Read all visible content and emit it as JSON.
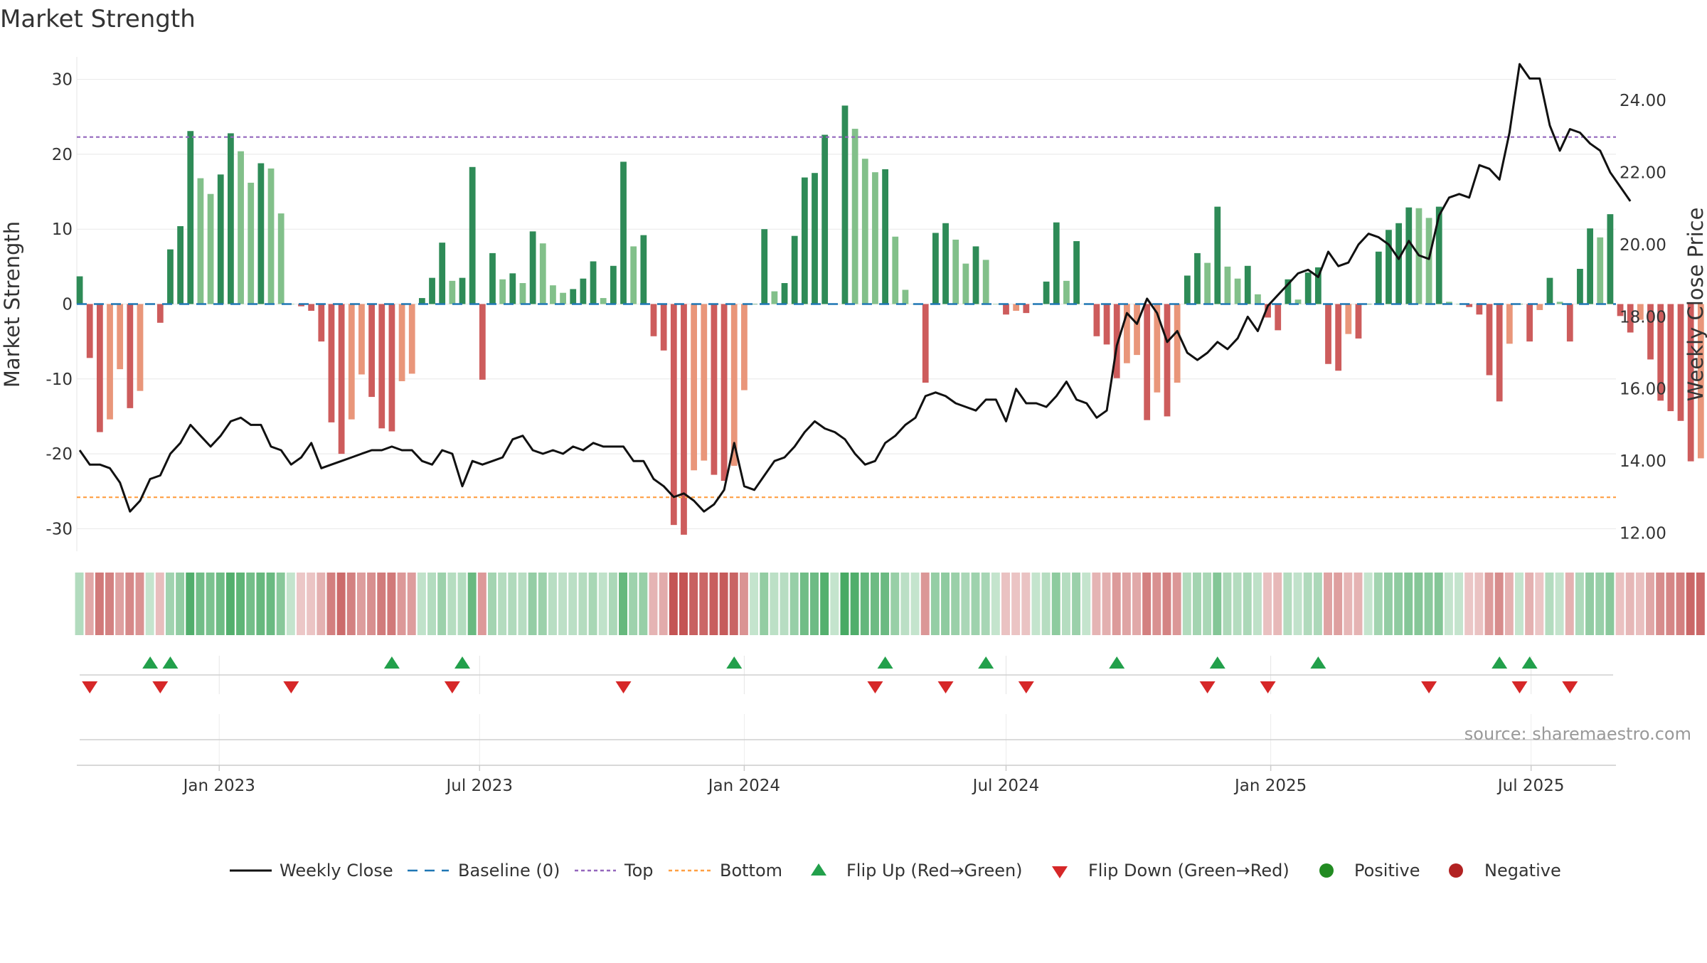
{
  "chart_data": {
    "type": "bar",
    "title": "Market Strength",
    "ylabel_left": "Market Strength",
    "ylabel_right": "Weekly Close Price",
    "ylim_left": [
      -33,
      33
    ],
    "ylim_right": [
      11.5,
      25.2
    ],
    "yticks_left": [
      30,
      20,
      10,
      0,
      -10,
      -20,
      -30
    ],
    "yticks_right": [
      "24.00",
      "22.00",
      "20.00",
      "18.00",
      "16.00",
      "14.00",
      "12.00"
    ],
    "top_line": 22.3,
    "bottom_line": -25.8,
    "baseline": 0,
    "x_range": [
      "2022-09-24",
      "2025-08-29"
    ],
    "x_ticks": [
      {
        "date": "2023-01-01",
        "label": "Jan 2023"
      },
      {
        "date": "2023-07-01",
        "label": "Jul 2023"
      },
      {
        "date": "2024-01-01",
        "label": "Jan 2024"
      },
      {
        "date": "2024-07-01",
        "label": "Jul 2024"
      },
      {
        "date": "2025-01-01",
        "label": "Jan 2025"
      },
      {
        "date": "2025-07-01",
        "label": "Jul 2025"
      }
    ],
    "start_date": "2022-09-26",
    "week_step_days": 7,
    "strength": [
      3.7,
      -7.2,
      -17.1,
      -15.4,
      -8.7,
      -13.9,
      -11.6,
      0,
      -2.5,
      7.3,
      10.4,
      23.1,
      16.8,
      14.7,
      17.3,
      22.8,
      20.4,
      16.2,
      18.8,
      18.1,
      12.1,
      0,
      -0.3,
      -0.9,
      -5,
      -15.8,
      -20,
      -15.4,
      -9.4,
      -12.4,
      -16.6,
      -17,
      -10.3,
      -9.3,
      0.8,
      3.5,
      8.2,
      3.1,
      3.5,
      18.3,
      -10.1,
      6.8,
      3.3,
      4.1,
      2.8,
      9.7,
      8.1,
      2.5,
      1.5,
      2,
      3.4,
      5.7,
      0.8,
      5.1,
      19,
      7.7,
      9.2,
      -4.3,
      -6.2,
      -29.5,
      -30.8,
      -22.2,
      -20.9,
      -22.8,
      -23.6,
      -21.6,
      -11.5,
      0,
      10,
      1.7,
      2.8,
      9.1,
      16.9,
      17.5,
      22.6,
      0,
      26.5,
      23.4,
      19.4,
      17.6,
      18,
      9,
      1.9,
      0,
      -10.5,
      9.5,
      10.8,
      8.6,
      5.4,
      7.7,
      5.9,
      0,
      -1.4,
      -0.9,
      -1.2,
      0,
      3,
      10.9,
      3.1,
      8.4,
      0,
      -4.3,
      -5.4,
      -9.9,
      -7.9,
      -6.8,
      -15.5,
      -11.8,
      -15,
      -10.5,
      3.8,
      6.8,
      5.5,
      13,
      5,
      3.4,
      5.1,
      1.3,
      -1.8,
      -3.5,
      3.3,
      0.6,
      4.2,
      4.9,
      -8,
      -8.9,
      -4,
      -4.6,
      0,
      7,
      9.9,
      10.8,
      12.9,
      12.8,
      11.5,
      13,
      0.3,
      0,
      -0.4,
      -1.4,
      -9.5,
      -13,
      -5.3,
      0,
      -5,
      -0.8,
      3.5,
      0.3,
      -5,
      4.7,
      10.1,
      8.9,
      12,
      -1.6,
      -3.8,
      -2.1,
      -7.4,
      -12.9,
      -14.3,
      -15.6,
      -21,
      -20.6
    ],
    "weekly_close": [
      14.3,
      13.9,
      13.9,
      13.8,
      13.4,
      12.6,
      12.9,
      13.5,
      13.6,
      14.2,
      14.5,
      15,
      14.7,
      14.4,
      14.7,
      15.1,
      15.2,
      15,
      15,
      14.4,
      14.3,
      13.9,
      14.1,
      14.5,
      13.8,
      13.9,
      14,
      14.1,
      14.2,
      14.3,
      14.3,
      14.4,
      14.3,
      14.3,
      14,
      13.9,
      14.3,
      14.2,
      13.3,
      14,
      13.9,
      14,
      14.1,
      14.6,
      14.7,
      14.3,
      14.2,
      14.3,
      14.2,
      14.4,
      14.3,
      14.5,
      14.4,
      14.4,
      14.4,
      14,
      14,
      13.5,
      13.3,
      13,
      13.1,
      12.9,
      12.6,
      12.8,
      13.2,
      14.5,
      13.3,
      13.2,
      13.6,
      14,
      14.1,
      14.4,
      14.8,
      15.1,
      14.9,
      14.8,
      14.6,
      14.2,
      13.9,
      14,
      14.5,
      14.7,
      15,
      15.2,
      15.8,
      15.9,
      15.8,
      15.6,
      15.5,
      15.4,
      15.7,
      15.7,
      15.1,
      16,
      15.6,
      15.6,
      15.5,
      15.8,
      16.2,
      15.7,
      15.6,
      15.2,
      15.4,
      17.2,
      18.1,
      17.8,
      18.5,
      18.1,
      17.3,
      17.6,
      17,
      16.8,
      17,
      17.3,
      17.1,
      17.4,
      18,
      17.6,
      18.3,
      18.6,
      18.9,
      19.2,
      19.3,
      19.1,
      19.8,
      19.4,
      19.5,
      20,
      20.3,
      20.2,
      20,
      19.6,
      20.1,
      19.7,
      19.6,
      20.8,
      21.3,
      21.4,
      21.3,
      22.2,
      22.1,
      21.8,
      23.1,
      25,
      24.6,
      24.6,
      23.3,
      22.6,
      23.2,
      23.1,
      22.8,
      22.6,
      22,
      21.6,
      21.2
    ],
    "flip_up_dates": [
      "2022-11-14",
      "2022-11-28",
      "2023-05-01",
      "2023-06-19",
      "2023-12-25",
      "2024-04-08",
      "2024-06-17",
      "2024-09-16",
      "2024-11-25",
      "2025-02-03",
      "2025-06-09",
      "2025-06-30"
    ],
    "flip_down_dates": [
      "2022-10-03",
      "2022-11-21",
      "2023-02-20",
      "2023-06-12",
      "2023-10-09",
      "2024-04-01",
      "2024-05-20",
      "2024-07-15",
      "2024-11-18",
      "2024-12-30",
      "2025-04-21",
      "2025-06-23",
      "2025-07-28"
    ],
    "legend": [
      "Weekly Close",
      "Baseline (0)",
      "Top",
      "Bottom",
      "Flip Up (Red→Green)",
      "Flip Down (Green→Red)",
      "Positive",
      "Negative"
    ],
    "source": "source: sharemaestro.com",
    "colors": {
      "pos_dark": "#2e8b57",
      "pos_light": "#82c08a",
      "neg_dark": "#cd5c5c",
      "neg_light": "#e9967a",
      "close_line": "#111111",
      "baseline": "#1f77b4",
      "top": "#9467bd",
      "bottom": "#ff9f43",
      "flip_up": "#22a04b",
      "flip_down": "#d62728",
      "legend_positive": "#228b22",
      "legend_negative": "#b22222"
    }
  }
}
